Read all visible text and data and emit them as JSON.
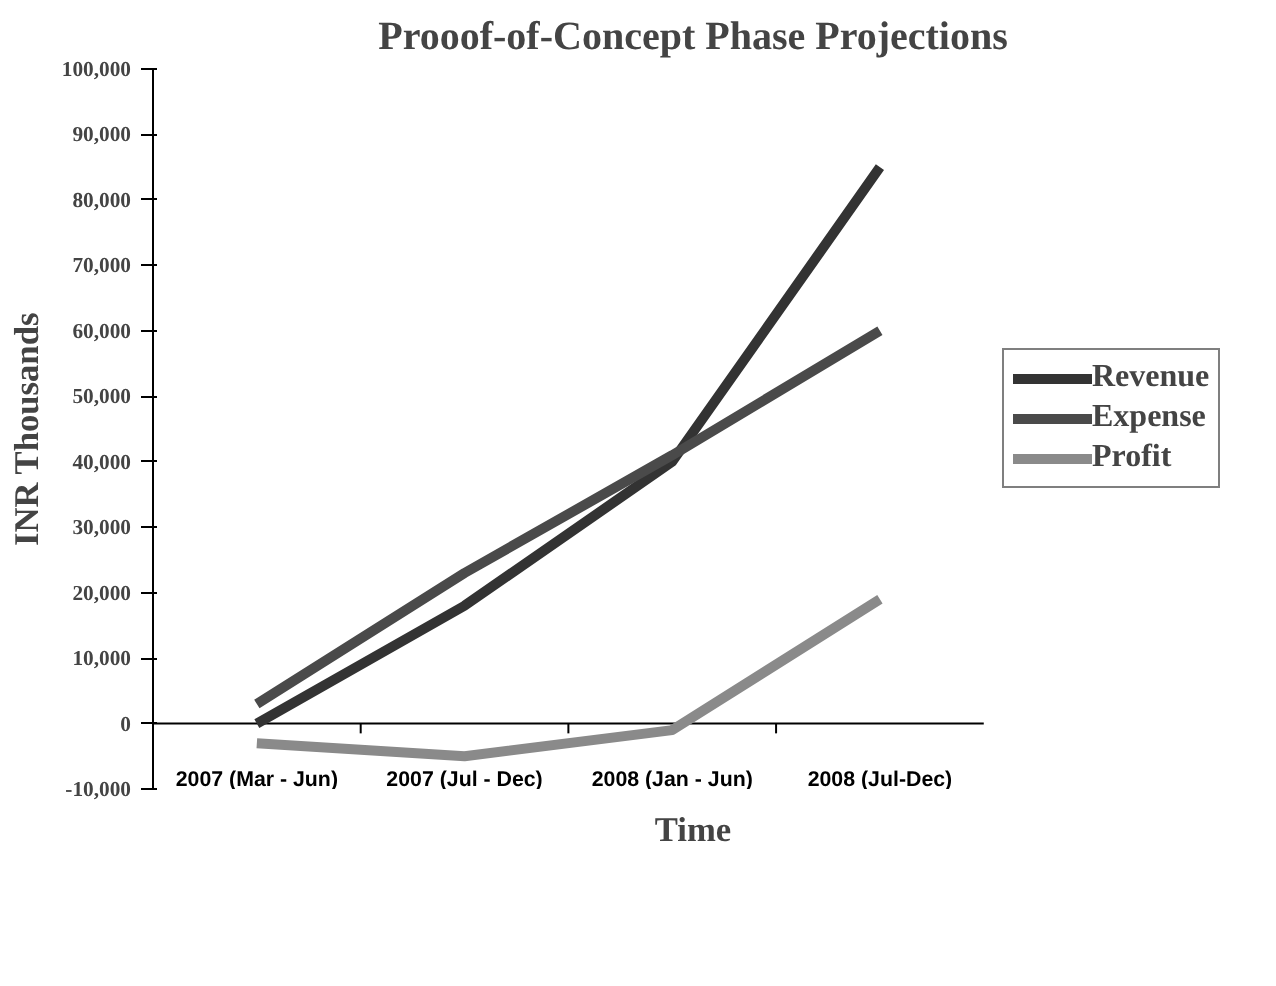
{
  "chart_data": {
    "type": "line",
    "title": "Prooof-of-Concept Phase Projections",
    "xlabel": "Time",
    "ylabel": "INR Thousands",
    "categories": [
      "2007 (Mar - Jun)",
      "2007 (Jul - Dec)",
      "2008 (Jan - Jun)",
      "2008 (Jul-Dec)"
    ],
    "series": [
      {
        "name": "Revenue",
        "color": "#333333",
        "values": [
          0,
          18000,
          40000,
          85000
        ]
      },
      {
        "name": "Expense",
        "color": "#4a4a4a",
        "values": [
          3000,
          23000,
          41000,
          60000
        ]
      },
      {
        "name": "Profit",
        "color": "#8a8a8a",
        "values": [
          -3000,
          -5000,
          -1000,
          19000
        ]
      }
    ],
    "ylim": [
      -10000,
      100000
    ],
    "yticks": [
      {
        "value": -10000,
        "label": "-10,000"
      },
      0,
      {
        "value": 10000,
        "label": "10,000"
      },
      {
        "value": 20000,
        "label": "20,000"
      },
      {
        "value": 30000,
        "label": "30,000"
      },
      {
        "value": 40000,
        "label": "40,000"
      },
      {
        "value": 50000,
        "label": "50,000"
      },
      {
        "value": 60000,
        "label": "60,000"
      },
      {
        "value": 70000,
        "label": "70,000"
      },
      {
        "value": 80000,
        "label": "80,000"
      },
      {
        "value": 90000,
        "label": "90,000"
      },
      {
        "value": 100000,
        "label": "100,000"
      }
    ],
    "legend": "right",
    "marker": "none",
    "line_style": "solid"
  }
}
